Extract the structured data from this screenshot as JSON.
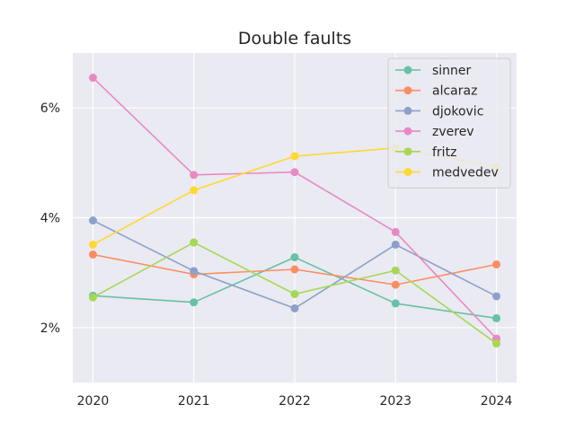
{
  "chart_data": {
    "type": "line",
    "title": "Double faults",
    "xlabel": "",
    "ylabel": "",
    "x": [
      2020,
      2021,
      2022,
      2023,
      2024
    ],
    "x_tick_labels": [
      "2020",
      "2021",
      "2022",
      "2023",
      "2024"
    ],
    "xlim": [
      2019.8,
      2024.2
    ],
    "ylim": [
      1.0,
      7.0
    ],
    "y_ticks": [
      2,
      4,
      6
    ],
    "y_tick_labels": [
      "2%",
      "4%",
      "6%"
    ],
    "grid": true,
    "background": "#eaeaf2",
    "legend_position": "top-right",
    "series": [
      {
        "name": "sinner",
        "color": "#66c2a5",
        "values": [
          2.58,
          2.46,
          3.28,
          2.44,
          2.17
        ]
      },
      {
        "name": "alcaraz",
        "color": "#fc8d62",
        "values": [
          3.33,
          2.97,
          3.06,
          2.78,
          3.15
        ]
      },
      {
        "name": "djokovic",
        "color": "#8da0cb",
        "values": [
          3.95,
          3.03,
          2.35,
          3.51,
          2.57
        ]
      },
      {
        "name": "zverev",
        "color": "#e78ac3",
        "values": [
          6.55,
          4.78,
          4.83,
          3.74,
          1.8
        ]
      },
      {
        "name": "fritz",
        "color": "#a6d854",
        "values": [
          2.55,
          3.55,
          2.61,
          3.04,
          1.71
        ]
      },
      {
        "name": "medvedev",
        "color": "#ffd92f",
        "values": [
          3.51,
          4.5,
          5.12,
          5.27,
          4.93
        ]
      }
    ]
  }
}
